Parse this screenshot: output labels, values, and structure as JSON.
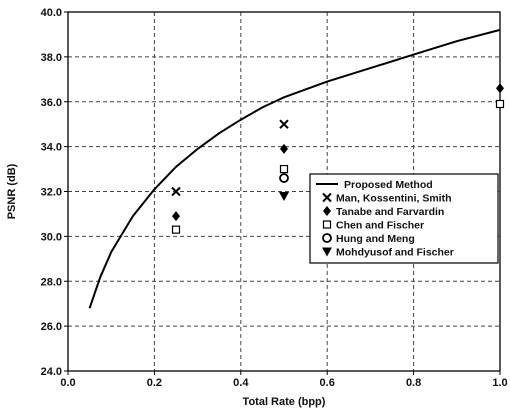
{
  "chart_data": {
    "type": "line",
    "title": "",
    "xlabel": "Total Rate (bpp)",
    "ylabel": "PSNR (dB)",
    "xlim": [
      0.0,
      1.0
    ],
    "ylim": [
      24.0,
      40.0
    ],
    "xticks": [
      "0.0",
      "0.2",
      "0.4",
      "0.6",
      "0.8",
      "1.0"
    ],
    "yticks": [
      "24.0",
      "26.0",
      "28.0",
      "30.0",
      "32.0",
      "34.0",
      "36.0",
      "38.0",
      "40.0"
    ],
    "grid": true,
    "legend_position": "right",
    "series": [
      {
        "name": "Proposed Method",
        "marker": "line",
        "points": [
          [
            0.05,
            26.8
          ],
          [
            0.075,
            28.2
          ],
          [
            0.1,
            29.3
          ],
          [
            0.15,
            30.9
          ],
          [
            0.2,
            32.1
          ],
          [
            0.25,
            33.1
          ],
          [
            0.3,
            33.9
          ],
          [
            0.35,
            34.6
          ],
          [
            0.4,
            35.2
          ],
          [
            0.45,
            35.75
          ],
          [
            0.5,
            36.2
          ],
          [
            0.6,
            36.9
          ],
          [
            0.7,
            37.5
          ],
          [
            0.8,
            38.1
          ],
          [
            0.9,
            38.7
          ],
          [
            1.0,
            39.2
          ]
        ]
      },
      {
        "name": "Man, Kossentini, Smith",
        "marker": "x",
        "points": [
          [
            0.25,
            32.0
          ],
          [
            0.5,
            35.0
          ]
        ]
      },
      {
        "name": "Tanabe and Farvardin",
        "marker": "diamond",
        "points": [
          [
            0.25,
            30.9
          ],
          [
            0.5,
            33.9
          ],
          [
            1.0,
            36.6
          ]
        ]
      },
      {
        "name": "Chen and Fischer",
        "marker": "square",
        "points": [
          [
            0.25,
            30.3
          ],
          [
            0.5,
            33.0
          ],
          [
            1.0,
            35.9
          ]
        ]
      },
      {
        "name": "Hung and Meng",
        "marker": "circle",
        "points": [
          [
            0.5,
            32.6
          ]
        ]
      },
      {
        "name": "Mohdyusof and Fischer",
        "marker": "triangle-down",
        "points": [
          [
            0.5,
            31.8
          ]
        ]
      }
    ]
  }
}
